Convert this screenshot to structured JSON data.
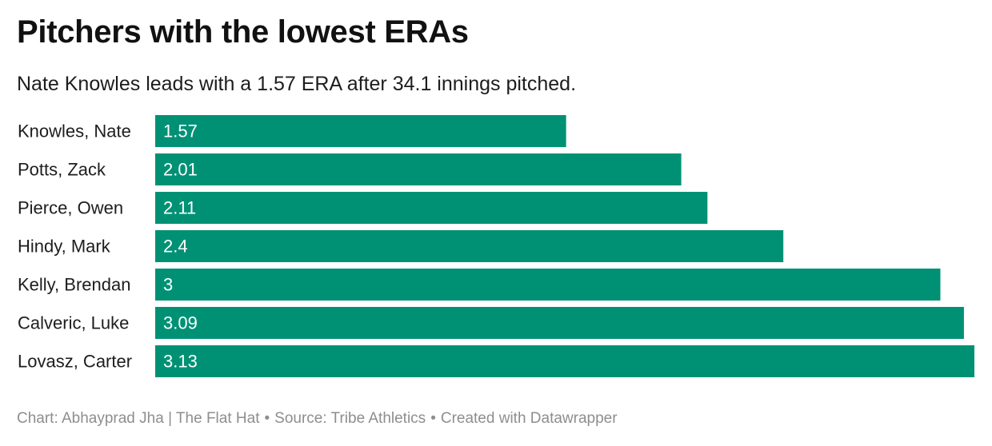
{
  "chart_data": {
    "type": "bar",
    "orientation": "horizontal",
    "title": "Pitchers with the lowest ERAs",
    "subtitle": "Nate Knowles leads with a 1.57 ERA after 34.1 innings pitched.",
    "categories": [
      "Knowles, Nate",
      "Potts, Zack",
      "Pierce, Owen",
      "Hindy, Mark",
      "Kelly, Brendan",
      "Calveric, Luke",
      "Lovasz, Carter"
    ],
    "values": [
      1.57,
      2.01,
      2.11,
      2.4,
      3,
      3.09,
      3.13
    ],
    "value_labels": [
      "1.57",
      "2.01",
      "2.11",
      "2.4",
      "3",
      "3.09",
      "3.13"
    ],
    "xlim": [
      0,
      3.13
    ],
    "bar_color": "#009175",
    "xlabel": "",
    "ylabel": ""
  },
  "footer": {
    "chart_credit": "Chart: Abhayprad Jha | The Flat Hat",
    "sep1": "•",
    "source": "Source: Tribe Athletics",
    "sep2": "•",
    "created_with": "Created with Datawrapper"
  }
}
